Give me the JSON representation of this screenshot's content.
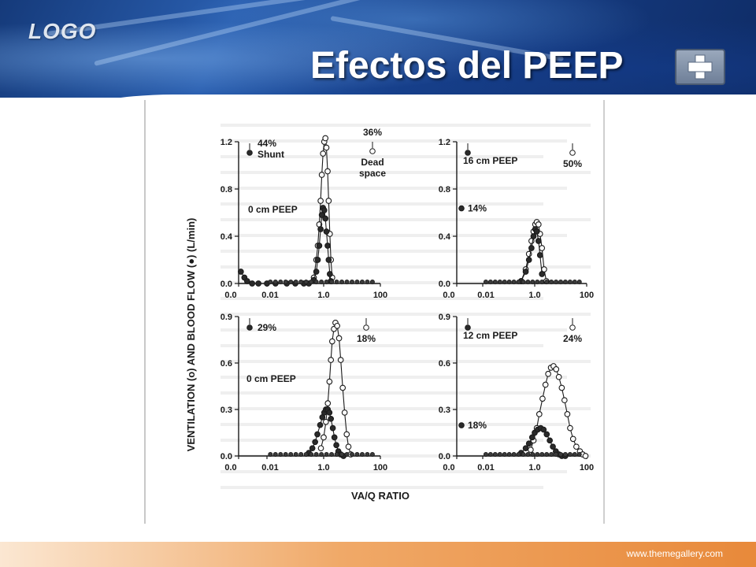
{
  "header": {
    "logo": "LOGO",
    "title": "Efectos del PEEP"
  },
  "footer": {
    "url": "www.themegallery.com"
  },
  "colors": {
    "banner": "#1e4a96",
    "footer": "#e8893a",
    "ink": "#1a1a1a"
  },
  "figure": {
    "ylabel": "VENTILATION (o) AND BLOOD FLOW (●) (L/min)",
    "xlabel": "VA/Q RATIO"
  },
  "chart_data": [
    {
      "type": "scatter",
      "panel": "top-left",
      "annotation": "0 cm PEEP",
      "shunt_label": "44%",
      "shunt_text": "Shunt",
      "deadspace_label": "36%",
      "deadspace_text": "Dead space",
      "xticks": [
        "0.0",
        "0.01",
        "1.0",
        "100"
      ],
      "yticks": [
        "0.0",
        "0.4",
        "0.8",
        "1.2"
      ],
      "ylim": [
        0,
        1.2
      ],
      "xscale": "log",
      "series": [
        {
          "marker": "open",
          "x": [
            0.45,
            0.55,
            0.62,
            0.7,
            0.78,
            0.86,
            0.95,
            1.05,
            1.15,
            1.25,
            1.38,
            1.5,
            1.65,
            1.8,
            2.0
          ],
          "values": [
            0.05,
            0.2,
            0.32,
            0.5,
            0.7,
            0.92,
            1.1,
            1.2,
            1.23,
            1.15,
            0.95,
            0.7,
            0.42,
            0.2,
            0.05
          ]
        },
        {
          "marker": "filled",
          "x": [
            0.45,
            0.55,
            0.62,
            0.7,
            0.78,
            0.86,
            0.95,
            1.05,
            1.15,
            1.25,
            1.38,
            1.5,
            1.65,
            1.8
          ],
          "values": [
            0.03,
            0.1,
            0.2,
            0.32,
            0.46,
            0.58,
            0.64,
            0.62,
            0.55,
            0.44,
            0.32,
            0.2,
            0.08,
            0.02
          ]
        },
        {
          "marker": "filled",
          "x": [
            0.0012,
            0.0016,
            0.002,
            0.003,
            0.005,
            0.01,
            0.02,
            0.05,
            0.1,
            0.2,
            0.3
          ],
          "values": [
            0.1,
            0.05,
            0.02,
            0,
            0,
            0,
            0,
            0,
            0,
            0,
            0
          ]
        }
      ]
    },
    {
      "type": "scatter",
      "panel": "top-right",
      "annotation": "16 cm PEEP",
      "shunt_label": "14%",
      "deadspace_label": "50%",
      "xticks": [
        "0.0",
        "0.01",
        "1.0",
        "100"
      ],
      "yticks": [
        "0.0",
        "0.4",
        "0.8",
        "1.2"
      ],
      "ylim": [
        0,
        1.2
      ],
      "xscale": "log",
      "series": [
        {
          "marker": "open",
          "x": [
            0.3,
            0.45,
            0.6,
            0.75,
            0.9,
            1.05,
            1.2,
            1.4,
            1.6,
            1.9,
            2.3,
            2.8
          ],
          "values": [
            0.02,
            0.12,
            0.25,
            0.36,
            0.44,
            0.5,
            0.52,
            0.5,
            0.42,
            0.3,
            0.12,
            0.02
          ]
        },
        {
          "marker": "filled",
          "x": [
            0.3,
            0.45,
            0.6,
            0.75,
            0.9,
            1.05,
            1.2,
            1.4,
            1.6,
            1.9
          ],
          "values": [
            0.02,
            0.1,
            0.2,
            0.3,
            0.4,
            0.46,
            0.44,
            0.36,
            0.24,
            0.08
          ]
        }
      ]
    },
    {
      "type": "scatter",
      "panel": "bottom-left",
      "annotation": "0 cm PEEP",
      "shunt_label": "29%",
      "deadspace_label": "18%",
      "xticks": [
        "0.0",
        "0.01",
        "1.0",
        "100"
      ],
      "yticks": [
        "0.0",
        "0.3",
        "0.6",
        "0.9"
      ],
      "ylim": [
        0,
        0.9
      ],
      "xscale": "log",
      "series": [
        {
          "marker": "open",
          "x": [
            0.8,
            1.0,
            1.2,
            1.4,
            1.6,
            1.8,
            2.0,
            2.3,
            2.6,
            3.0,
            3.5,
            4.0,
            4.7,
            5.5,
            6.5,
            7.5,
            9.0
          ],
          "values": [
            0.05,
            0.12,
            0.22,
            0.34,
            0.48,
            0.62,
            0.74,
            0.82,
            0.86,
            0.84,
            0.76,
            0.62,
            0.44,
            0.28,
            0.14,
            0.06,
            0.01
          ]
        },
        {
          "marker": "filled",
          "x": [
            0.3,
            0.4,
            0.5,
            0.6,
            0.75,
            0.9,
            1.05,
            1.2,
            1.4,
            1.6,
            1.8,
            2.1,
            2.4,
            2.8,
            3.3,
            4.0,
            5.0
          ],
          "values": [
            0.02,
            0.05,
            0.09,
            0.14,
            0.2,
            0.25,
            0.28,
            0.3,
            0.3,
            0.28,
            0.24,
            0.18,
            0.12,
            0.07,
            0.03,
            0.01,
            0
          ]
        }
      ]
    },
    {
      "type": "scatter",
      "panel": "bottom-right",
      "annotation": "12 cm PEEP",
      "shunt_label": "18%",
      "deadspace_label": "24%",
      "xticks": [
        "0.0",
        "0.01",
        "1.0",
        "100"
      ],
      "yticks": [
        "0.0",
        "0.3",
        "0.6",
        "0.9"
      ],
      "ylim": [
        0,
        0.9
      ],
      "xscale": "log",
      "series": [
        {
          "marker": "open",
          "x": [
            0.7,
            0.9,
            1.2,
            1.5,
            2.0,
            2.6,
            3.3,
            4.2,
            5.3,
            6.7,
            8.5,
            11,
            14,
            18,
            23,
            30,
            40,
            55,
            70,
            90
          ],
          "values": [
            0.04,
            0.1,
            0.18,
            0.27,
            0.37,
            0.46,
            0.53,
            0.57,
            0.58,
            0.56,
            0.51,
            0.44,
            0.36,
            0.27,
            0.18,
            0.11,
            0.06,
            0.03,
            0.01,
            0
          ]
        },
        {
          "marker": "filled",
          "x": [
            0.3,
            0.45,
            0.6,
            0.8,
            1.0,
            1.3,
            1.7,
            2.2,
            2.9,
            3.8,
            5.0,
            6.5,
            8.5,
            11,
            15
          ],
          "values": [
            0.02,
            0.05,
            0.08,
            0.12,
            0.15,
            0.17,
            0.18,
            0.17,
            0.14,
            0.1,
            0.06,
            0.03,
            0.01,
            0,
            0
          ]
        }
      ]
    }
  ]
}
